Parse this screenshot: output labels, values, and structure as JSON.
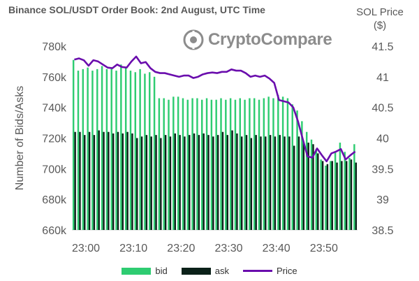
{
  "chart_data": {
    "type": "bar",
    "title": "Binance SOL/USDT Order Book: 2nd August, UTC Time",
    "watermark": "CryptoCompare",
    "ylabel": "Number of Bids/Asks",
    "y2label_line1": "SOL Price",
    "y2label_line2": "($)",
    "ylim": [
      660000,
      780000
    ],
    "y2lim": [
      38.5,
      41.5
    ],
    "yticks": [
      "660k",
      "680k",
      "700k",
      "720k",
      "740k",
      "760k",
      "780k"
    ],
    "y2ticks": [
      "38.5",
      "39",
      "39.5",
      "40",
      "40.5",
      "41",
      "41.5"
    ],
    "xticks": [
      "23:00",
      "23:10",
      "23:20",
      "23:30",
      "23:40",
      "23:50"
    ],
    "x_minutes": [
      0,
      1,
      2,
      3,
      4,
      5,
      6,
      7,
      8,
      9,
      10,
      11,
      12,
      13,
      14,
      15,
      16,
      17,
      18,
      19,
      20,
      21,
      22,
      23,
      24,
      25,
      26,
      27,
      28,
      29,
      30,
      31,
      32,
      33,
      34,
      35,
      36,
      37,
      38,
      39,
      40,
      41,
      42,
      43,
      44,
      45,
      46,
      47,
      48,
      49,
      50,
      51,
      52,
      53,
      54,
      55,
      56,
      57,
      58,
      59
    ],
    "series": [
      {
        "name": "bid",
        "color": "#2ecc71",
        "values": [
          771000,
          764000,
          765000,
          766000,
          764000,
          765000,
          767000,
          765000,
          766000,
          764000,
          768000,
          766000,
          764000,
          763000,
          765000,
          762000,
          763000,
          760000,
          746000,
          746000,
          745000,
          747000,
          747000,
          746000,
          745000,
          746000,
          746000,
          745000,
          746000,
          745000,
          745000,
          746000,
          745000,
          746000,
          745000,
          746000,
          745000,
          746000,
          746000,
          745000,
          746000,
          747000,
          746000,
          748000,
          747000,
          746000,
          742000,
          738000,
          731000,
          724000,
          719000,
          713000,
          706000,
          702000,
          705000,
          711000,
          717000,
          711000,
          707000,
          716000
        ]
      },
      {
        "name": "ask",
        "color": "#0b2119",
        "values": [
          724000,
          724000,
          722000,
          724000,
          722000,
          725000,
          724000,
          724000,
          723000,
          724000,
          723000,
          724000,
          723000,
          720000,
          721000,
          722000,
          721000,
          722000,
          720000,
          722000,
          721000,
          723000,
          722000,
          721000,
          722000,
          723000,
          722000,
          723000,
          722000,
          721000,
          722000,
          724000,
          722000,
          725000,
          723000,
          721000,
          722000,
          720000,
          722000,
          721000,
          721000,
          722000,
          721000,
          722000,
          721000,
          721000,
          715000,
          721000,
          717000,
          717000,
          716000,
          710000,
          705000,
          703000,
          705000,
          704000,
          705000,
          705000,
          706000,
          704000
        ]
      },
      {
        "name": "Price",
        "color": "#6a0dad",
        "values": [
          41.28,
          41.3,
          41.27,
          41.18,
          41.27,
          41.25,
          41.2,
          41.15,
          41.14,
          41.2,
          41.16,
          41.15,
          41.25,
          41.33,
          41.22,
          41.24,
          41.14,
          41.08,
          41.06,
          41.06,
          41.04,
          41.02,
          41.0,
          41.02,
          41.02,
          40.98,
          41.0,
          41.04,
          41.06,
          41.07,
          41.06,
          41.08,
          41.08,
          41.12,
          41.1,
          41.1,
          41.06,
          41.0,
          41.02,
          41.0,
          41.02,
          40.97,
          40.9,
          40.62,
          40.6,
          40.58,
          40.5,
          40.27,
          39.98,
          39.7,
          39.68,
          39.83,
          39.72,
          39.62,
          39.75,
          39.78,
          39.82,
          39.65,
          39.72,
          39.78
        ]
      }
    ],
    "legend": {
      "position": "bottom",
      "items": [
        "bid",
        "ask",
        "Price"
      ]
    },
    "grid": false
  }
}
